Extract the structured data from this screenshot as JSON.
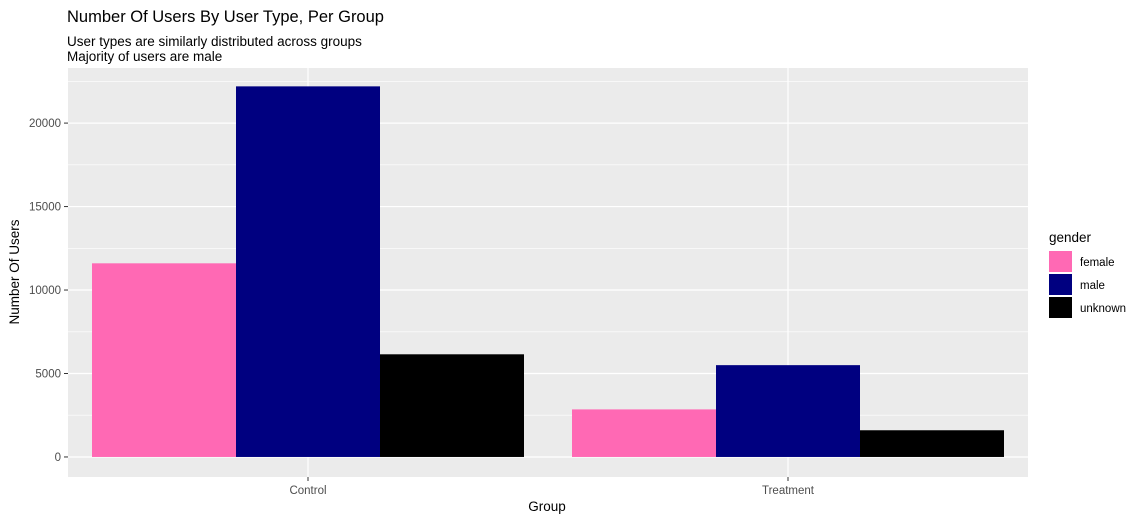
{
  "chart_data": {
    "type": "bar",
    "title": "Number Of Users By User Type, Per Group",
    "subtitle_lines": [
      "User types are similarly distributed across groups",
      "Majority of users are male"
    ],
    "xlabel": "Group",
    "ylabel": "Number Of Users",
    "categories": [
      "Control",
      "Treatment"
    ],
    "series": [
      {
        "name": "female",
        "color": "#FF69B4",
        "values": [
          11600,
          2850
        ]
      },
      {
        "name": "male",
        "color": "#000080",
        "values": [
          22200,
          5500
        ]
      },
      {
        "name": "unknown",
        "color": "#000000",
        "values": [
          6150,
          1600
        ]
      }
    ],
    "ylim": [
      -1200,
      23300
    ],
    "yticks": [
      0,
      5000,
      10000,
      15000,
      20000
    ],
    "ytick_labels": [
      "0",
      "5000",
      "10000",
      "15000",
      "20000"
    ],
    "legend_title": "gender",
    "legend_position": "right",
    "grid": true,
    "panel_background": "#EBEBEB",
    "grid_color": "#FFFFFF"
  }
}
